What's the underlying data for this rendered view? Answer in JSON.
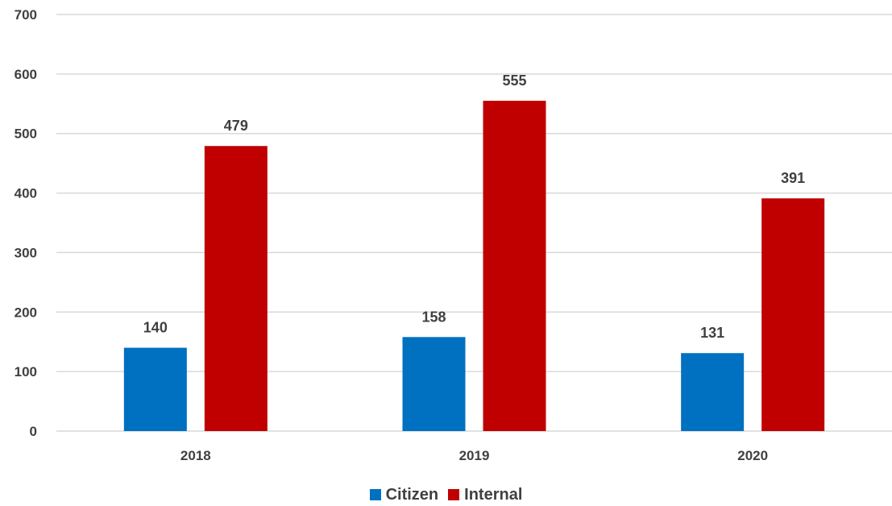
{
  "chart_data": {
    "type": "bar",
    "title": "",
    "xlabel": "",
    "ylabel": "",
    "categories": [
      "2018",
      "2019",
      "2020"
    ],
    "series": [
      {
        "name": "Citizen",
        "values": [
          140,
          158,
          131
        ],
        "color": "#0070C0"
      },
      {
        "name": "Internal",
        "values": [
          479,
          555,
          391
        ],
        "color": "#C00000"
      }
    ],
    "ylim": [
      0,
      700
    ],
    "yticks": [
      0,
      100,
      200,
      300,
      400,
      500,
      600,
      700
    ],
    "grid": true,
    "legend_position": "bottom",
    "data_labels": true
  },
  "colors": {
    "text": "#404040",
    "gridline": "#D9D9D9"
  }
}
